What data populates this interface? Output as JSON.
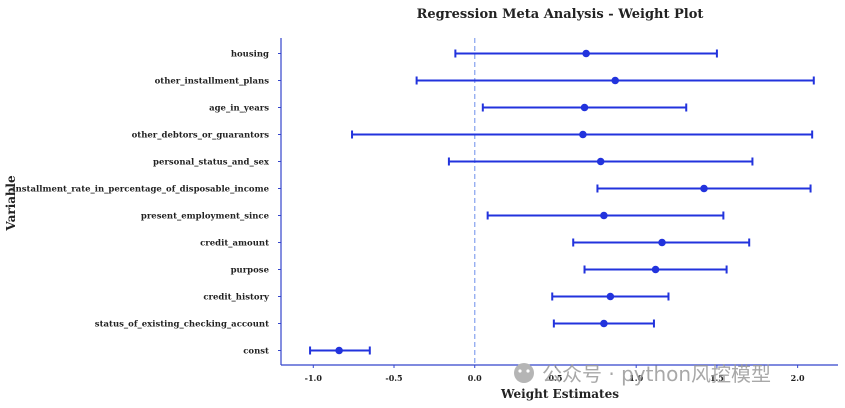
{
  "chart_data": {
    "type": "errorbar",
    "title": "Regression Meta Analysis - Weight Plot",
    "xlabel": "Weight Estimates",
    "ylabel": "Variable",
    "xlim": [
      -1.2,
      2.25
    ],
    "xticks": [
      -1.0,
      -0.5,
      0.0,
      0.5,
      1.0,
      1.5,
      2.0
    ],
    "xtick_labels": [
      "-1.0",
      "-0.5",
      "0.0",
      "0.5",
      "1.0",
      "1.5",
      "2.0"
    ],
    "reference_line": 0.0,
    "series_color": "#2233dd",
    "reference_color": "#8fa8f0",
    "axis_color": "#3344cc",
    "variables": [
      {
        "name": "housing",
        "estimate": 0.69,
        "lower": -0.12,
        "upper": 1.5
      },
      {
        "name": "other_installment_plans",
        "estimate": 0.87,
        "lower": -0.36,
        "upper": 2.1
      },
      {
        "name": "age_in_years",
        "estimate": 0.68,
        "lower": 0.05,
        "upper": 1.31
      },
      {
        "name": "other_debtors_or_guarantors",
        "estimate": 0.67,
        "lower": -0.76,
        "upper": 2.09
      },
      {
        "name": "personal_status_and_sex",
        "estimate": 0.78,
        "lower": -0.16,
        "upper": 1.72
      },
      {
        "name": "installment_rate_in_percentage_of_disposable_income",
        "estimate": 1.42,
        "lower": 0.76,
        "upper": 2.08
      },
      {
        "name": "present_employment_since",
        "estimate": 0.8,
        "lower": 0.08,
        "upper": 1.54
      },
      {
        "name": "credit_amount",
        "estimate": 1.16,
        "lower": 0.61,
        "upper": 1.7
      },
      {
        "name": "purpose",
        "estimate": 1.12,
        "lower": 0.68,
        "upper": 1.56
      },
      {
        "name": "credit_history",
        "estimate": 0.84,
        "lower": 0.48,
        "upper": 1.2
      },
      {
        "name": "status_of_existing_checking_account",
        "estimate": 0.8,
        "lower": 0.49,
        "upper": 1.11
      },
      {
        "name": "const",
        "estimate": -0.84,
        "lower": -1.02,
        "upper": -0.65
      }
    ]
  },
  "watermark": {
    "text": "公众号 · python风控模型"
  }
}
